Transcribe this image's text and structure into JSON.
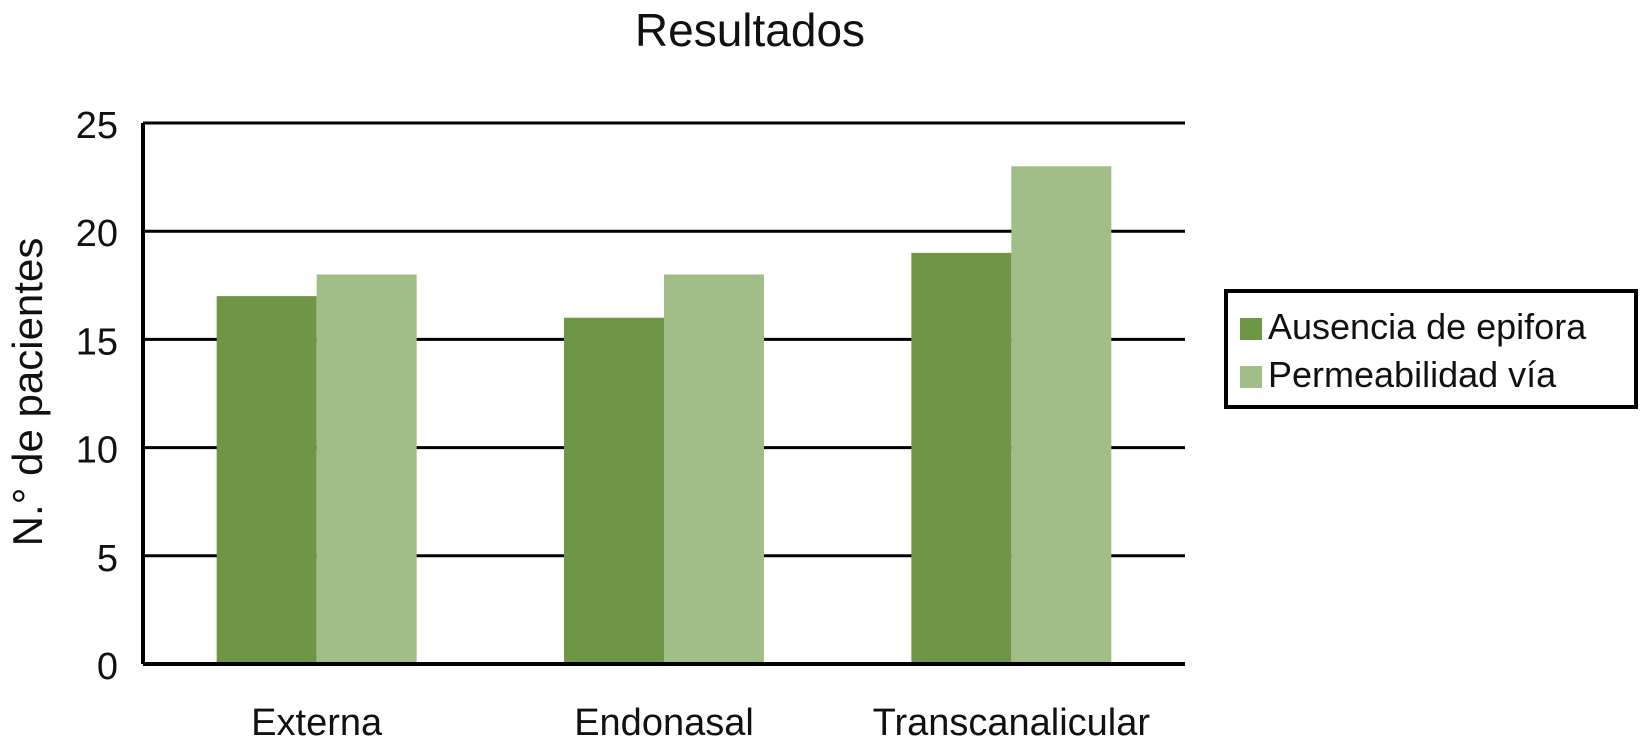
{
  "chart_data": {
    "type": "bar",
    "title": "Resultados",
    "xlabel": "",
    "ylabel": "N.° de pacientes",
    "categories": [
      "Externa",
      "Endonasal",
      "Transcanalicular"
    ],
    "series": [
      {
        "name": "Ausencia de epifora",
        "values": [
          17,
          16,
          19
        ],
        "color": "#6f9646"
      },
      {
        "name": "Permeabilidad vía",
        "values": [
          18,
          18,
          23
        ],
        "color": "#a1be88"
      }
    ],
    "ylim": [
      0,
      25
    ],
    "yticks": [
      0,
      5,
      10,
      15,
      20,
      25
    ],
    "grid": true,
    "legend_position": "right"
  }
}
